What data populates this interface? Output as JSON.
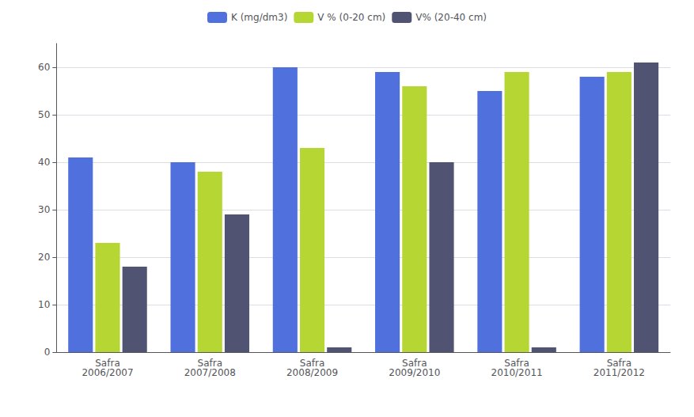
{
  "chart_data": {
    "type": "bar",
    "categories": [
      "Safra\n2006/2007",
      "Safra\n2007/2008",
      "Safra\n2008/2009",
      "Safra\n2009/2010",
      "Safra\n2010/2011",
      "Safra\n2011/2012"
    ],
    "series": [
      {
        "name": "K (mg/dm3)",
        "values": [
          41,
          40,
          60,
          59,
          55,
          58
        ]
      },
      {
        "name": "V % (0-20 cm)",
        "values": [
          23,
          38,
          43,
          56,
          59,
          59
        ]
      },
      {
        "name": "V% (20-40 cm)",
        "values": [
          18,
          29,
          1,
          40,
          1,
          61
        ]
      }
    ],
    "ylim": [
      0,
      65
    ],
    "yticks": [
      0,
      10,
      20,
      30,
      40,
      50,
      60
    ],
    "grid": true,
    "legend": "top"
  }
}
